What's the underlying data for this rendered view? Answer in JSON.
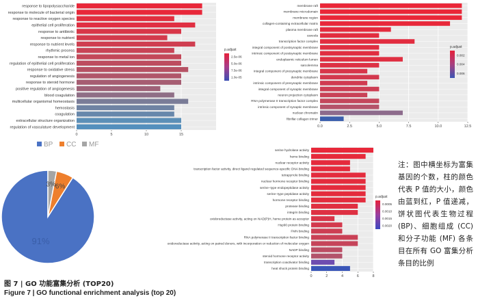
{
  "chart_data": [
    {
      "type": "bar",
      "orientation": "horizontal",
      "panel": "BP",
      "categories": [
        "response to lipopolysaccharide",
        "response to molecule of bacterial origin",
        "response to reactive oxygen species",
        "epithelial cell proliferation",
        "response to antibiotic",
        "response to nutrient",
        "response to nutrient levels",
        "rhythmic process",
        "response to metal ion",
        "regulation of epithelial cell proliferation",
        "response to oxidative stress",
        "regulation of angiogenesis",
        "response to steroid hormone",
        "positive regulation of angiogenesis",
        "blood coagulation",
        "multicellular organismal homeostasis",
        "hemostasis",
        "coagulation",
        "extracellular structure organization",
        "regulation of vasculature development"
      ],
      "values": [
        18,
        18,
        14,
        17,
        15,
        13,
        17,
        14,
        15,
        15,
        16,
        15,
        15,
        12,
        14,
        16,
        14,
        14,
        15,
        15
      ],
      "colors": [
        "#e8283a",
        "#e8283a",
        "#e12f3f",
        "#e02f42",
        "#d83748",
        "#d33b4c",
        "#cf3e50",
        "#c84456",
        "#c34859",
        "#bd4d5f",
        "#b65264",
        "#b0566a",
        "#a65d72",
        "#9f6278",
        "#8f6e86",
        "#7a7c97",
        "#6f83a3",
        "#6787ab",
        "#5c8fb7",
        "#548fbd"
      ],
      "xlim": [
        0,
        20
      ],
      "xticks": [
        "0",
        "5",
        "10",
        "15"
      ],
      "legend": {
        "title": "p.adjust",
        "labels": [
          "2.5e-06",
          "5.0e-06",
          "7.5e-06",
          "1.0e-05"
        ],
        "position": "right"
      }
    },
    {
      "type": "bar",
      "orientation": "horizontal",
      "panel": "CC",
      "categories": [
        "membrane raft",
        "membrane microdomain",
        "membrane region",
        "collagen-containing extracellular matrix",
        "plasma membrane raft",
        "caveola",
        "transcription factor complex",
        "integral component of postsynaptic membrane",
        "intrinsic component of postsynaptic membrane",
        "endoplasmic reticulum lumen",
        "sarcolemma",
        "integral component of presynaptic membrane",
        "dendrite cytoplasm",
        "intrinsic component of presynaptic membrane",
        "integral component of synaptic membrane",
        "neuron projection cytoplasm",
        "RNA polymerase II transcription factor complex",
        "intrinsic component of synaptic membrane",
        "nuclear chromatin",
        "fibrillar collagen trimer"
      ],
      "values": [
        12,
        12,
        12,
        11,
        6,
        5,
        8,
        5,
        5,
        7,
        5,
        4,
        5,
        4,
        5,
        4,
        5,
        5,
        7,
        2
      ],
      "colors": [
        "#ea2738",
        "#ea2738",
        "#ea2738",
        "#e8283a",
        "#e42b3e",
        "#e22d3f",
        "#e22d40",
        "#e02f41",
        "#e02f41",
        "#df3042",
        "#dd3144",
        "#d8354a",
        "#d3394e",
        "#d03b51",
        "#cd3e54",
        "#c94257",
        "#c4475c",
        "#b5536a",
        "#8d6b8c",
        "#3b5fad"
      ],
      "xlim": [
        0,
        12.5
      ],
      "xticks": [
        "0.0",
        "2.5",
        "5.0",
        "7.5",
        "10.0",
        "12.5"
      ],
      "legend": {
        "title": "p.adjust",
        "labels": [
          "0.002",
          "0.004",
          "0.006"
        ],
        "position": "right"
      }
    },
    {
      "type": "pie",
      "categories": [
        "BP",
        "CC",
        "MF"
      ],
      "values": [
        91,
        6,
        3
      ],
      "labels": [
        "91%",
        "6%",
        "3%"
      ],
      "colors": [
        "#4a72c4",
        "#ee7f2d",
        "#a5a5a5"
      ],
      "legend": {
        "position": "top"
      }
    },
    {
      "type": "bar",
      "orientation": "horizontal",
      "panel": "MF",
      "categories": [
        "serine hydrolase activity",
        "heme binding",
        "nuclear receptor activity",
        "transcription factor activity, direct ligand regulated sequence-specific DNA binding",
        "tetrapyrrole binding",
        "nuclear hormone receptor binding",
        "serine−type endopeptidase activity",
        "serine−type peptidase activity",
        "hormone receptor binding",
        "protease binding",
        "integrin binding",
        "oxidoreductase activity, acting on NAD(P)H, heme protein as acceptor",
        "Hsp90 protein binding",
        "FMN binding",
        "RNA polymerase II transcription factor binding",
        "oxidoreductase activity, acting on paired donors, with incorporation or reduction of molecular oxygen",
        "NADP binding",
        "steroid hormone receptor activity",
        "transcription coactivator binding",
        "heat shock protein binding"
      ],
      "values": [
        8,
        7,
        5,
        5,
        7,
        7,
        7,
        7,
        7,
        6,
        6,
        3,
        4,
        4,
        6,
        6,
        4,
        4,
        3,
        5
      ],
      "colors": [
        "#e8283a",
        "#e62a3b",
        "#e52b3c",
        "#e52b3c",
        "#e42c3d",
        "#e42c3d",
        "#e42c3d",
        "#e42c3d",
        "#e32d3e",
        "#e02f41",
        "#de3143",
        "#d83549",
        "#d3394d",
        "#cd3e53",
        "#ca4156",
        "#c6445a",
        "#bc4c63",
        "#b3536b",
        "#6e4cb0",
        "#3a56b8"
      ],
      "xlim": [
        0,
        8
      ],
      "xticks": [
        "0",
        "2",
        "4",
        "6",
        "8"
      ],
      "legend": {
        "title": "p.adjust",
        "labels": [
          "0.0005",
          "0.0010",
          "0.0015",
          "0.0020"
        ],
        "position": "right"
      }
    }
  ],
  "note": "注：图中横坐标为富集基因的个数，柱的颜色代表 P 值的大小，颜色由蓝到红，P 值递减，饼状图代表生物过程 (BP)、细胞组成 (CC) 和分子功能 (MF) 各条目在所有 GO 富集分析条目的比例",
  "caption_cn": "图 7 | GO 功能富集分析 (TOP20)",
  "caption_en": "Figure 7 | GO functional enrichment analysis (top 20)"
}
